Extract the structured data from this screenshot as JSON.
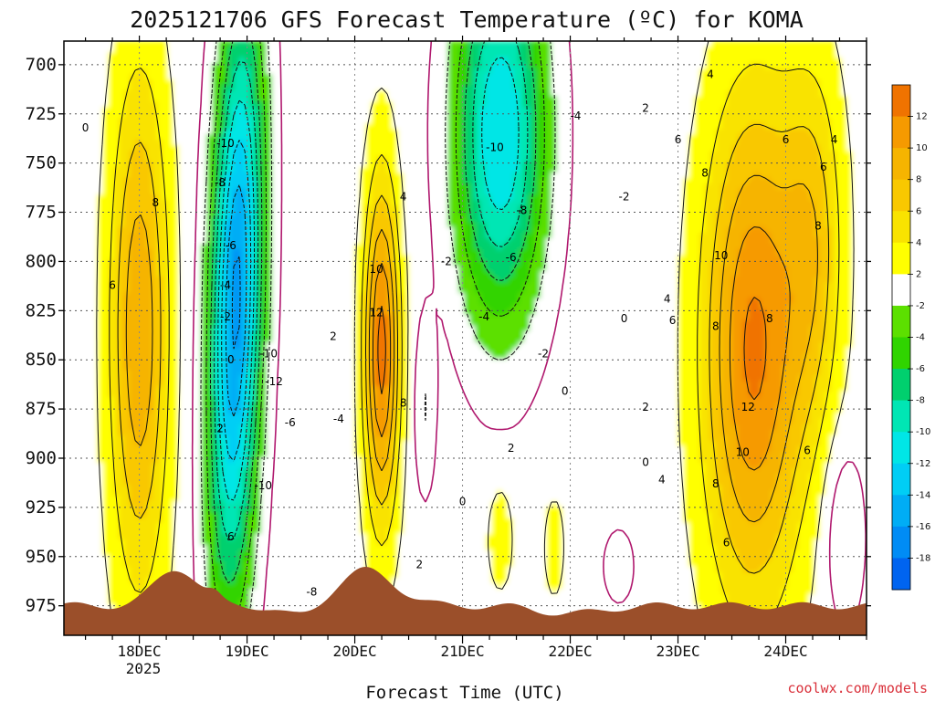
{
  "chart_data": {
    "type": "heatmap",
    "title": "2025121706 GFS Forecast Temperature (ºC) for KOMA",
    "xlabel": "Forecast Time (UTC)",
    "ylabel": "",
    "credit": "coolwx.com/models",
    "x_ticks": [
      "18DEC",
      "19DEC",
      "20DEC",
      "21DEC",
      "22DEC",
      "23DEC",
      "24DEC"
    ],
    "x_year_label": "2025",
    "x_range_days": [
      17.3,
      24.75
    ],
    "y_ticks": [
      "700",
      "725",
      "750",
      "775",
      "800",
      "825",
      "850",
      "875",
      "900",
      "925",
      "950",
      "975"
    ],
    "y_range_hPa": [
      688,
      990
    ],
    "grid": true,
    "colorbar": {
      "labels": [
        "12",
        "10",
        "8",
        "6",
        "4",
        "2",
        "-2",
        "-4",
        "-6",
        "-8",
        "-10",
        "-12",
        "-14",
        "-16",
        "-18"
      ],
      "colors": [
        "#f07300",
        "#f69a00",
        "#f6b400",
        "#f9c800",
        "#f9e300",
        "#ffff00",
        "#ffffff",
        "#5ce000",
        "#30d400",
        "#00d06e",
        "#00e6b4",
        "#00e6e6",
        "#00cef5",
        "#00adf5",
        "#008cf5",
        "#0064f0"
      ]
    },
    "contour_labels": [
      {
        "t": "0",
        "d": 17.5,
        "p": 732
      },
      {
        "t": "8",
        "d": 18.15,
        "p": 770
      },
      {
        "t": "6",
        "d": 17.75,
        "p": 812
      },
      {
        "t": "-10",
        "d": 18.8,
        "p": 740
      },
      {
        "t": "-8",
        "d": 18.75,
        "p": 760
      },
      {
        "t": "-6",
        "d": 18.85,
        "p": 792
      },
      {
        "t": "-4",
        "d": 18.8,
        "p": 812
      },
      {
        "t": "-2",
        "d": 18.8,
        "p": 828
      },
      {
        "t": "0",
        "d": 18.85,
        "p": 850
      },
      {
        "t": "2",
        "d": 18.75,
        "p": 885
      },
      {
        "t": "6",
        "d": 18.85,
        "p": 940
      },
      {
        "t": "-10",
        "d": 19.2,
        "p": 847
      },
      {
        "t": "-12",
        "d": 19.25,
        "p": 861
      },
      {
        "t": "-6",
        "d": 19.4,
        "p": 882
      },
      {
        "t": "-10",
        "d": 19.15,
        "p": 914
      },
      {
        "t": "-4",
        "d": 19.85,
        "p": 880
      },
      {
        "t": "2",
        "d": 19.8,
        "p": 838
      },
      {
        "t": "-8",
        "d": 19.6,
        "p": 968
      },
      {
        "t": "4",
        "d": 20.45,
        "p": 767
      },
      {
        "t": "10",
        "d": 20.2,
        "p": 804
      },
      {
        "t": "12",
        "d": 20.2,
        "p": 826
      },
      {
        "t": "8",
        "d": 20.45,
        "p": 872
      },
      {
        "t": "2",
        "d": 20.6,
        "p": 954
      },
      {
        "t": "-2",
        "d": 20.85,
        "p": 800
      },
      {
        "t": "-10",
        "d": 21.3,
        "p": 742
      },
      {
        "t": "-8",
        "d": 21.55,
        "p": 774
      },
      {
        "t": "-6",
        "d": 21.45,
        "p": 798
      },
      {
        "t": "-4",
        "d": 21.2,
        "p": 828
      },
      {
        "t": "-4",
        "d": 22.05,
        "p": 726
      },
      {
        "t": "-2",
        "d": 21.75,
        "p": 847
      },
      {
        "t": "0",
        "d": 21.95,
        "p": 866
      },
      {
        "t": "2",
        "d": 21.45,
        "p": 895
      },
      {
        "t": "0",
        "d": 21.0,
        "p": 922
      },
      {
        "t": "2",
        "d": 22.7,
        "p": 722
      },
      {
        "t": "-2",
        "d": 22.5,
        "p": 767
      },
      {
        "t": "0",
        "d": 22.5,
        "p": 829
      },
      {
        "t": "2",
        "d": 22.7,
        "p": 874
      },
      {
        "t": "0",
        "d": 22.7,
        "p": 902
      },
      {
        "t": "4",
        "d": 22.85,
        "p": 911
      },
      {
        "t": "4",
        "d": 23.3,
        "p": 705
      },
      {
        "t": "6",
        "d": 23.0,
        "p": 738
      },
      {
        "t": "8",
        "d": 23.25,
        "p": 755
      },
      {
        "t": "10",
        "d": 23.4,
        "p": 797
      },
      {
        "t": "4",
        "d": 22.9,
        "p": 819
      },
      {
        "t": "6",
        "d": 22.95,
        "p": 830
      },
      {
        "t": "8",
        "d": 23.35,
        "p": 833
      },
      {
        "t": "8",
        "d": 23.85,
        "p": 829
      },
      {
        "t": "12",
        "d": 23.65,
        "p": 874
      },
      {
        "t": "10",
        "d": 23.6,
        "p": 897
      },
      {
        "t": "8",
        "d": 23.35,
        "p": 913
      },
      {
        "t": "6",
        "d": 23.45,
        "p": 943
      },
      {
        "t": "6",
        "d": 24.0,
        "p": 738
      },
      {
        "t": "6",
        "d": 24.35,
        "p": 752
      },
      {
        "t": "4",
        "d": 24.45,
        "p": 738
      },
      {
        "t": "8",
        "d": 24.3,
        "p": 782
      },
      {
        "t": "6",
        "d": 24.2,
        "p": 896
      }
    ]
  }
}
